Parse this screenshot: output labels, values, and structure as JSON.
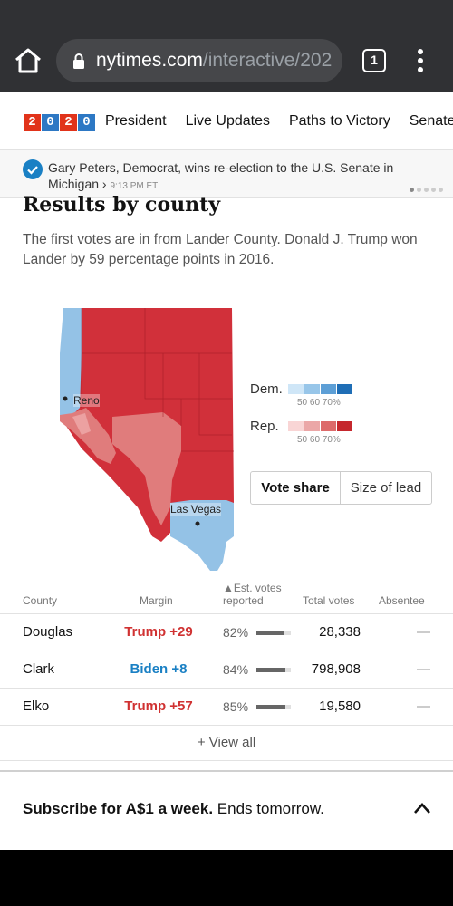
{
  "browser": {
    "url_host": "nytimes.com",
    "url_path": "/interactive/202",
    "tab_count": "1"
  },
  "nav": {
    "logo_digits": [
      "2",
      "0",
      "2",
      "0"
    ],
    "logo_colors": [
      "#e1331a",
      "#2d78c4",
      "#e1331a",
      "#2d78c4"
    ],
    "items": [
      "President",
      "Live Updates",
      "Paths to Victory",
      "Senate"
    ]
  },
  "ticker": {
    "text": "Gary Peters, Democrat, wins re-election to the U.S. Senate in",
    "text2": "Michigan",
    "arrow": "›",
    "time": "9:13 PM ET"
  },
  "section": {
    "heading": "Results by county",
    "lede": "The first votes are in from Lander County. Donald J. Trump won Lander by 59 percentage points in 2016."
  },
  "map": {
    "labels": {
      "reno": "Reno",
      "lasvegas": "Las Vegas"
    },
    "colors": {
      "dem_light": "#94c2e6",
      "rep_dark": "#d1303a",
      "rep_medium": "#e07c7c",
      "rep_light": "#eca1a1"
    }
  },
  "legend": {
    "dem_label": "Dem.",
    "rep_label": "Rep.",
    "ticks": "50 60 70%",
    "dem_colors": [
      "#cfe6f7",
      "#98c6e9",
      "#5d9fd6",
      "#1f6eb6"
    ],
    "rep_colors": [
      "#f9d5d5",
      "#eba7a7",
      "#dd6a6a",
      "#c5272d"
    ]
  },
  "toggle": {
    "vote_share": "Vote share",
    "size_of_lead": "Size of lead"
  },
  "table": {
    "headers": {
      "county": "County",
      "margin": "Margin",
      "reported_arrow": "▲",
      "reported_line1": "Est. votes",
      "reported_line2": "reported",
      "total": "Total votes",
      "absentee": "Absentee"
    },
    "rows": [
      {
        "county": "Douglas",
        "margin": "Trump +29",
        "party": "rep",
        "reported": "82%",
        "reported_value": 82,
        "total": "28,338",
        "absentee": "—"
      },
      {
        "county": "Clark",
        "margin": "Biden +8",
        "party": "dem",
        "reported": "84%",
        "reported_value": 84,
        "total": "798,908",
        "absentee": "—"
      },
      {
        "county": "Elko",
        "margin": "Trump +57",
        "party": "rep",
        "reported": "85%",
        "reported_value": 85,
        "total": "19,580",
        "absentee": "—"
      }
    ],
    "view_all": "+ View all"
  },
  "subscribe": {
    "bold": "Subscribe for A$1 a week.",
    "rest": " Ends tomorrow."
  }
}
